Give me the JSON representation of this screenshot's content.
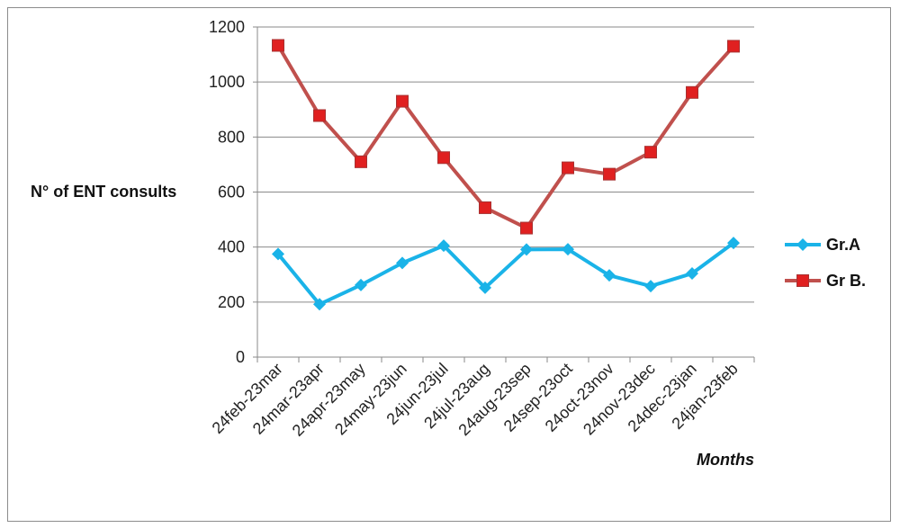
{
  "chart_data": {
    "type": "line",
    "title": "",
    "ylabel": "N° of ENT consults",
    "xlabel": "Months",
    "ylim": [
      0,
      1200
    ],
    "yticks": [
      "0",
      "200",
      "400",
      "600",
      "800",
      "1000",
      "1200"
    ],
    "grid": "horizontal",
    "legend_position": "right",
    "categories": [
      "24feb-23mar",
      "24mar-23apr",
      "24apr-23may",
      "24may-23jun",
      "24jun-23jul",
      "24jul-23aug",
      "24aug-23sep",
      "24sep-23oct",
      "24oct-23nov",
      "24nov-23dec",
      "24dec-23jan",
      "24jan-23feb"
    ],
    "series": [
      {
        "name": "Gr.A",
        "color": "#1ab3e8",
        "marker": "diamond",
        "values": [
          375,
          192,
          262,
          342,
          405,
          252,
          391,
          392,
          297,
          258,
          304,
          415
        ]
      },
      {
        "name": "Gr B.",
        "color": "#c0504d",
        "marker_color": "#e02020",
        "marker": "square",
        "values": [
          1133,
          878,
          710,
          930,
          725,
          543,
          469,
          688,
          665,
          745,
          962,
          1130
        ]
      }
    ]
  }
}
